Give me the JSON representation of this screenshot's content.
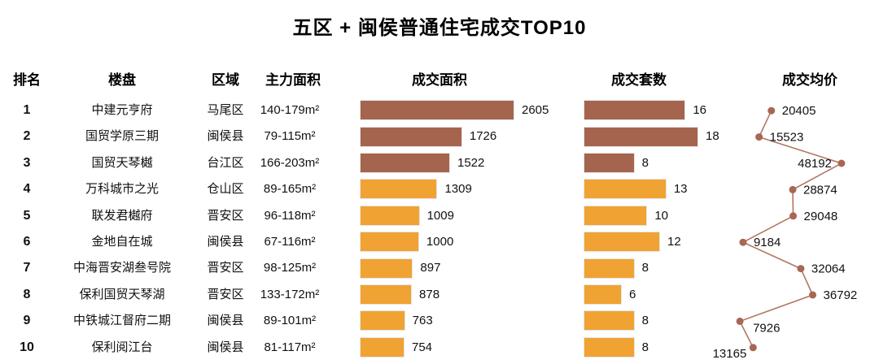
{
  "title": "五区 + 闽侯普通住宅成交TOP10",
  "columns": {
    "rank": "排名",
    "name": "楼盘",
    "district": "区域",
    "area": "主力面积",
    "sold_area": "成交面积",
    "units": "成交套数",
    "price": "成交均价"
  },
  "colors": {
    "bar_top3": "#A5644E",
    "bar_rest": "#F0A233",
    "line": "#B27663",
    "marker": "#A86753",
    "text": "#111111"
  },
  "rows": [
    {
      "rank": "1",
      "name": "中建元亨府",
      "district": "马尾区",
      "area": "140-179m²",
      "sold_area": 2605,
      "units": 16,
      "price": 20405
    },
    {
      "rank": "2",
      "name": "国贸学原三期",
      "district": "闽侯县",
      "area": "79-115m²",
      "sold_area": 1726,
      "units": 18,
      "price": 15523
    },
    {
      "rank": "3",
      "name": "国贸天琴樾",
      "district": "台江区",
      "area": "166-203m²",
      "sold_area": 1522,
      "units": 8,
      "price": 48192
    },
    {
      "rank": "4",
      "name": "万科城市之光",
      "district": "仓山区",
      "area": "89-165m²",
      "sold_area": 1309,
      "units": 13,
      "price": 28874
    },
    {
      "rank": "5",
      "name": "联发君樾府",
      "district": "晋安区",
      "area": "96-118m²",
      "sold_area": 1009,
      "units": 10,
      "price": 29048
    },
    {
      "rank": "6",
      "name": "金地自在城",
      "district": "闽侯县",
      "area": "67-116m²",
      "sold_area": 1000,
      "units": 12,
      "price": 9184
    },
    {
      "rank": "7",
      "name": "中海晋安湖叁号院",
      "district": "晋安区",
      "area": "98-125m²",
      "sold_area": 897,
      "units": 8,
      "price": 32064
    },
    {
      "rank": "8",
      "name": "保利国贸天琴湖",
      "district": "晋安区",
      "area": "133-172m²",
      "sold_area": 878,
      "units": 6,
      "price": 36792
    },
    {
      "rank": "9",
      "name": "中铁城江督府二期",
      "district": "闽侯县",
      "area": "89-101m²",
      "sold_area": 763,
      "units": 8,
      "price": 7926
    },
    {
      "rank": "10",
      "name": "保利阅江台",
      "district": "闽侯县",
      "area": "81-117m²",
      "sold_area": 754,
      "units": 8,
      "price": 13165
    }
  ],
  "chart_data": [
    {
      "type": "bar",
      "orientation": "horizontal",
      "title": "成交面积",
      "categories": [
        "中建元亨府",
        "国贸学原三期",
        "国贸天琴樾",
        "万科城市之光",
        "联发君樾府",
        "金地自在城",
        "中海晋安湖叁号院",
        "保利国贸天琴湖",
        "中铁城江督府二期",
        "保利阅江台"
      ],
      "values": [
        2605,
        1726,
        1522,
        1309,
        1009,
        1000,
        897,
        878,
        763,
        754
      ],
      "xlim": [
        0,
        2800
      ],
      "data_labels": true,
      "highlight_top3_color": "#A5644E",
      "default_color": "#F0A233",
      "grid": false,
      "legend": "none"
    },
    {
      "type": "bar",
      "orientation": "horizontal",
      "title": "成交套数",
      "categories": [
        "中建元亨府",
        "国贸学原三期",
        "国贸天琴樾",
        "万科城市之光",
        "联发君樾府",
        "金地自在城",
        "中海晋安湖叁号院",
        "保利国贸天琴湖",
        "中铁城江督府二期",
        "保利阅江台"
      ],
      "values": [
        16,
        18,
        8,
        13,
        10,
        12,
        8,
        6,
        8,
        8
      ],
      "xlim": [
        0,
        19
      ],
      "data_labels": true,
      "highlight_top3_color": "#A5644E",
      "default_color": "#F0A233",
      "grid": false,
      "legend": "none"
    },
    {
      "type": "line",
      "orientation": "vertical-category",
      "title": "成交均价",
      "categories": [
        "中建元亨府",
        "国贸学原三期",
        "国贸天琴樾",
        "万科城市之光",
        "联发君樾府",
        "金地自在城",
        "中海晋安湖叁号院",
        "保利国贸天琴湖",
        "中铁城江督府二期",
        "保利阅江台"
      ],
      "values": [
        20405,
        15523,
        48192,
        28874,
        29048,
        9184,
        32064,
        36792,
        7926,
        13165
      ],
      "value_range": [
        0,
        50000
      ],
      "markers": true,
      "data_labels": true,
      "label_sides": [
        "right",
        "right",
        "left",
        "right",
        "right",
        "right",
        "right",
        "right",
        "right-below",
        "left-below"
      ],
      "grid": false,
      "legend": "none"
    }
  ]
}
